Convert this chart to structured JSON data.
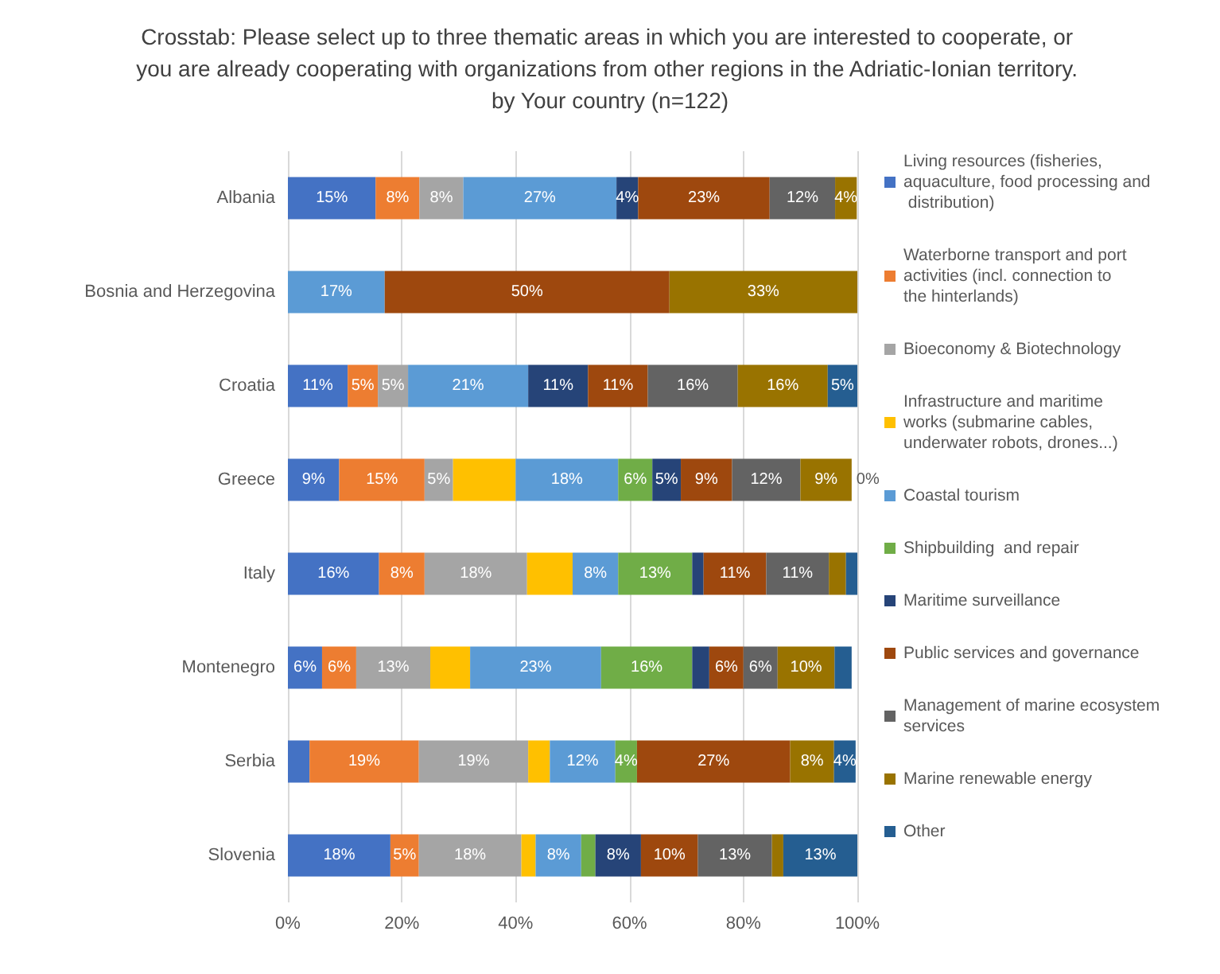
{
  "chart_data": {
    "type": "bar",
    "orientation": "horizontal",
    "stacked": true,
    "title": "Crosstab: Please select up to three thematic areas in which you are interested to cooperate, or you are already cooperating with organizations from other regions in the Adriatic-Ionian territory. by Your country (n=122)",
    "categories": [
      "Albania",
      "Bosnia and Herzegovina",
      "Croatia",
      "Greece",
      "Italy",
      "Montenegro",
      "Serbia",
      "Slovenia"
    ],
    "xlim": [
      0,
      100
    ],
    "xticks": [
      {
        "value": 0,
        "label": "0%"
      },
      {
        "value": 20,
        "label": "20%"
      },
      {
        "value": 40,
        "label": "40%"
      },
      {
        "value": 60,
        "label": "60%"
      },
      {
        "value": 80,
        "label": "80%"
      },
      {
        "value": 100,
        "label": "100%"
      }
    ],
    "grid": "x",
    "legend": "right",
    "series": [
      {
        "name": "Living resources (fisheries, aquaculture, food processing and distribution)",
        "color": "#4472c4",
        "values": [
          15.4,
          0,
          10.5,
          9,
          16,
          6,
          3.8,
          18
        ],
        "value_labels": [
          "15%",
          null,
          "11%",
          "9%",
          "16%",
          "6%",
          null,
          "18%"
        ]
      },
      {
        "name": "Waterborne transport and port activities (incl. connection to the hinterlands)",
        "color": "#ed7d31",
        "values": [
          7.7,
          0,
          5.3,
          15,
          8,
          6,
          19.2,
          5
        ],
        "value_labels": [
          "8%",
          null,
          "5%",
          "15%",
          "8%",
          "6%",
          "19%",
          "5%"
        ]
      },
      {
        "name": "Bioeconomy & Biotechnology",
        "color": "#a5a5a5",
        "values": [
          7.7,
          0,
          5.3,
          5,
          18,
          13,
          19.2,
          18
        ],
        "value_labels": [
          "8%",
          null,
          "5%",
          "5%",
          "18%",
          "13%",
          "19%",
          "18%"
        ]
      },
      {
        "name": "Infrastructure and maritime works (submarine cables, underwater robots, drones...)",
        "color": "#ffc000",
        "values": [
          0,
          0,
          0,
          11,
          8,
          7,
          3.8,
          2.5
        ],
        "value_labels": [
          null,
          null,
          null,
          null,
          null,
          null,
          null,
          null
        ]
      },
      {
        "name": "Coastal tourism",
        "color": "#5b9bd5",
        "values": [
          26.9,
          17,
          21.1,
          18,
          8,
          23,
          11.5,
          8
        ],
        "value_labels": [
          "27%",
          "17%",
          "21%",
          "18%",
          "8%",
          "23%",
          "12%",
          "8%"
        ]
      },
      {
        "name": "Shipbuilding  and repair",
        "color": "#70ad47",
        "values": [
          0,
          0,
          0,
          6,
          13,
          16,
          3.8,
          2.5
        ],
        "value_labels": [
          null,
          null,
          null,
          "6%",
          "13%",
          "16%",
          "4%",
          null
        ]
      },
      {
        "name": "Maritime surveillance",
        "color": "#264478",
        "values": [
          3.8,
          0,
          10.5,
          5,
          2,
          3,
          0,
          8
        ],
        "value_labels": [
          "4%",
          null,
          "11%",
          "5%",
          null,
          null,
          null,
          "8%"
        ]
      },
      {
        "name": "Public services and governance",
        "color": "#9e480e",
        "values": [
          23.1,
          50,
          10.5,
          9,
          11,
          6,
          26.9,
          10
        ],
        "value_labels": [
          "23%",
          "50%",
          "11%",
          "9%",
          "11%",
          "6%",
          "27%",
          "10%"
        ]
      },
      {
        "name": "Management of marine ecosystem services",
        "color": "#636363",
        "values": [
          11.5,
          0,
          15.8,
          12,
          11,
          6,
          0,
          13
        ],
        "value_labels": [
          "12%",
          null,
          "16%",
          "12%",
          "11%",
          "6%",
          null,
          "13%"
        ]
      },
      {
        "name": "Marine renewable energy",
        "color": "#997300",
        "values": [
          3.8,
          33,
          15.8,
          9,
          3,
          10,
          7.7,
          2
        ],
        "value_labels": [
          "4%",
          "33%",
          "16%",
          "9%",
          null,
          "10%",
          "8%",
          null
        ]
      },
      {
        "name": "Other",
        "color": "#255e91",
        "values": [
          0,
          0,
          5.2,
          0,
          2,
          3,
          3.8,
          13
        ],
        "value_labels": [
          null,
          null,
          "5%",
          "0%",
          null,
          null,
          "4%",
          "13%"
        ]
      }
    ]
  }
}
